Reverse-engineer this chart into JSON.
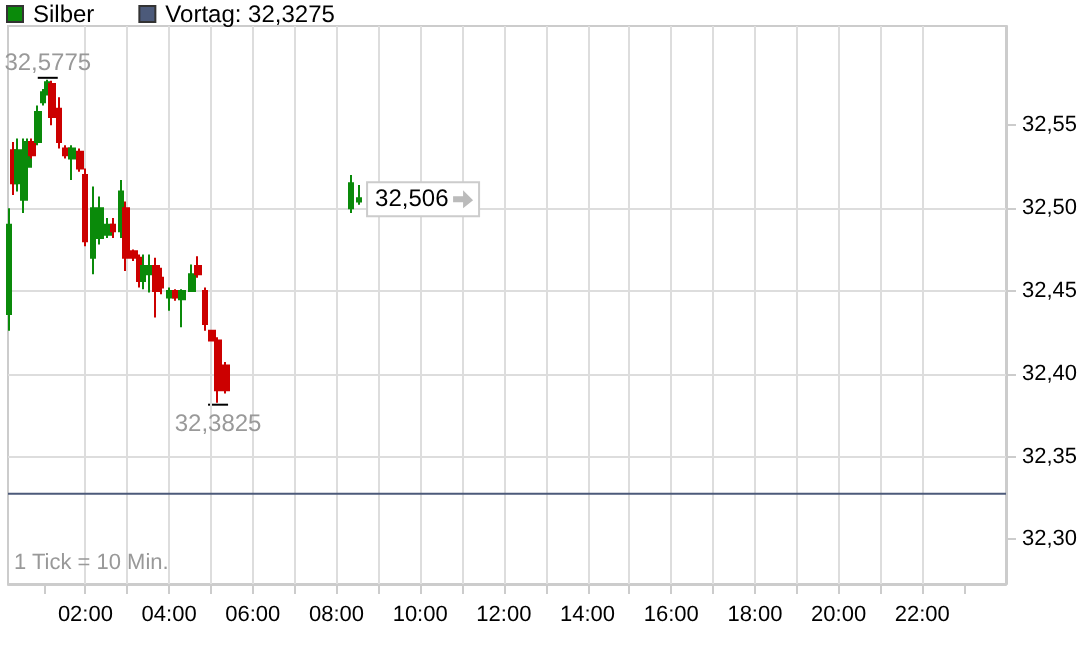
{
  "chart_data": {
    "type": "candlestick",
    "x": [
      0.17,
      0.28,
      0.39,
      0.54,
      0.63,
      0.73,
      0.87,
      0.98,
      1.1,
      1.21,
      1.37,
      1.54,
      1.68,
      1.87,
      2.0,
      2.19,
      2.35,
      2.54,
      2.67,
      2.86,
      2.98,
      3.17,
      3.27,
      3.37,
      3.52,
      3.68,
      3.81,
      4.02,
      4.16,
      4.32,
      4.54,
      4.7,
      4.86,
      5.02,
      5.17,
      5.37,
      8.35,
      8.54
    ],
    "series": [
      {
        "name": "Silber",
        "ohlc": [
          [
            32.436,
            32.5,
            32.426,
            32.49
          ],
          [
            32.535,
            32.54,
            32.508,
            32.515
          ],
          [
            32.515,
            32.542,
            32.51,
            32.535
          ],
          [
            32.505,
            32.542,
            32.497,
            32.53
          ],
          [
            32.525,
            32.542,
            32.522,
            32.54
          ],
          [
            32.54,
            32.542,
            32.53,
            32.532
          ],
          [
            32.54,
            32.562,
            32.538,
            32.558
          ],
          [
            32.564,
            32.572,
            32.562,
            32.57
          ],
          [
            32.57,
            32.5775,
            32.568,
            32.576
          ],
          [
            32.575,
            32.577,
            32.55,
            32.555
          ],
          [
            32.56,
            32.567,
            32.536,
            32.54
          ],
          [
            32.536,
            32.538,
            32.53,
            32.532
          ],
          [
            32.53,
            32.538,
            32.517,
            32.536
          ],
          [
            32.534,
            32.536,
            32.522,
            32.524
          ],
          [
            32.52,
            32.524,
            32.477,
            32.48
          ],
          [
            32.47,
            32.513,
            32.46,
            32.5
          ],
          [
            32.482,
            32.507,
            32.478,
            32.5
          ],
          [
            32.484,
            32.494,
            32.482,
            32.49
          ],
          [
            32.49,
            32.494,
            32.482,
            32.486
          ],
          [
            32.486,
            32.517,
            32.482,
            32.51
          ],
          [
            32.5,
            32.504,
            32.462,
            32.47
          ],
          [
            32.474,
            32.475,
            32.468,
            32.47
          ],
          [
            32.47,
            32.472,
            32.452,
            32.456
          ],
          [
            32.456,
            32.472,
            32.451,
            32.465
          ],
          [
            32.46,
            32.472,
            32.449,
            32.465
          ],
          [
            32.465,
            32.47,
            32.434,
            32.45
          ],
          [
            32.458,
            32.464,
            32.448,
            32.452
          ],
          [
            32.446,
            32.452,
            32.438,
            32.45
          ],
          [
            32.45,
            32.451,
            32.444,
            32.446
          ],
          [
            32.445,
            32.451,
            32.428,
            32.45
          ],
          [
            32.45,
            32.466,
            32.45,
            32.46
          ],
          [
            32.465,
            32.471,
            32.458,
            32.46
          ],
          [
            32.45,
            32.452,
            32.426,
            32.43
          ],
          [
            32.426,
            32.426,
            32.42,
            32.42
          ],
          [
            32.42,
            32.422,
            32.3825,
            32.39
          ],
          [
            32.405,
            32.407,
            32.388,
            32.39
          ],
          [
            32.5,
            32.52,
            32.497,
            32.515
          ],
          [
            32.504,
            32.514,
            32.502,
            32.506
          ]
        ],
        "colors": [
          "#0a8a0a",
          "#cc0000",
          "#0a8a0a",
          "#0a8a0a",
          "#0a8a0a",
          "#cc0000",
          "#0a8a0a",
          "#0a8a0a",
          "#0a8a0a",
          "#cc0000",
          "#cc0000",
          "#cc0000",
          "#0a8a0a",
          "#cc0000",
          "#cc0000",
          "#0a8a0a",
          "#0a8a0a",
          "#0a8a0a",
          "#cc0000",
          "#0a8a0a",
          "#cc0000",
          "#cc0000",
          "#cc0000",
          "#0a8a0a",
          "#0a8a0a",
          "#cc0000",
          "#cc0000",
          "#0a8a0a",
          "#cc0000",
          "#0a8a0a",
          "#0a8a0a",
          "#cc0000",
          "#cc0000",
          "#cc0000",
          "#cc0000",
          "#cc0000",
          "#0a8a0a",
          "#0a8a0a"
        ],
        "color": "#0a8a0a"
      }
    ],
    "xlim": [
      0.15,
      24
    ],
    "xticks": [
      {
        "value": 1,
        "label": null
      },
      {
        "value": 2,
        "label": "02:00"
      },
      {
        "value": 3,
        "label": null
      },
      {
        "value": 4,
        "label": "04:00"
      },
      {
        "value": 5,
        "label": null
      },
      {
        "value": 6,
        "label": "06:00"
      },
      {
        "value": 7,
        "label": null
      },
      {
        "value": 8,
        "label": "08:00"
      },
      {
        "value": 9,
        "label": null
      },
      {
        "value": 10,
        "label": "10:00"
      },
      {
        "value": 11,
        "label": null
      },
      {
        "value": 12,
        "label": "12:00"
      },
      {
        "value": 13,
        "label": null
      },
      {
        "value": 14,
        "label": "14:00"
      },
      {
        "value": 15,
        "label": null
      },
      {
        "value": 16,
        "label": "16:00"
      },
      {
        "value": 17,
        "label": null
      },
      {
        "value": 18,
        "label": "18:00"
      },
      {
        "value": 19,
        "label": null
      },
      {
        "value": 20,
        "label": "20:00"
      },
      {
        "value": 21,
        "label": null
      },
      {
        "value": 22,
        "label": "22:00"
      },
      {
        "value": 23,
        "label": null
      }
    ],
    "ylim": [
      32.273,
      32.61
    ],
    "yticks": [
      {
        "value": 32.3,
        "label": "32,30"
      },
      {
        "value": 32.35,
        "label": "32,35"
      },
      {
        "value": 32.4,
        "label": "32,40"
      },
      {
        "value": 32.45,
        "label": "32,45"
      },
      {
        "value": 32.5,
        "label": "32,50"
      },
      {
        "value": 32.55,
        "label": "32,55"
      }
    ],
    "ref_lines": [
      {
        "axis": "y",
        "value": 32.3275,
        "label": "Vortag: 32,3275",
        "color": "#4c5a7a"
      }
    ],
    "annotations": [
      {
        "text": "32,5775",
        "x": 1.1,
        "y": 32.5775
      },
      {
        "text": "32,3825",
        "x": 5.17,
        "y": 32.3825
      },
      {
        "text": "32,506",
        "x": 8.54,
        "y": 32.506
      },
      "1 Tick = 10 Min."
    ],
    "grid": true,
    "legend": "top left"
  }
}
